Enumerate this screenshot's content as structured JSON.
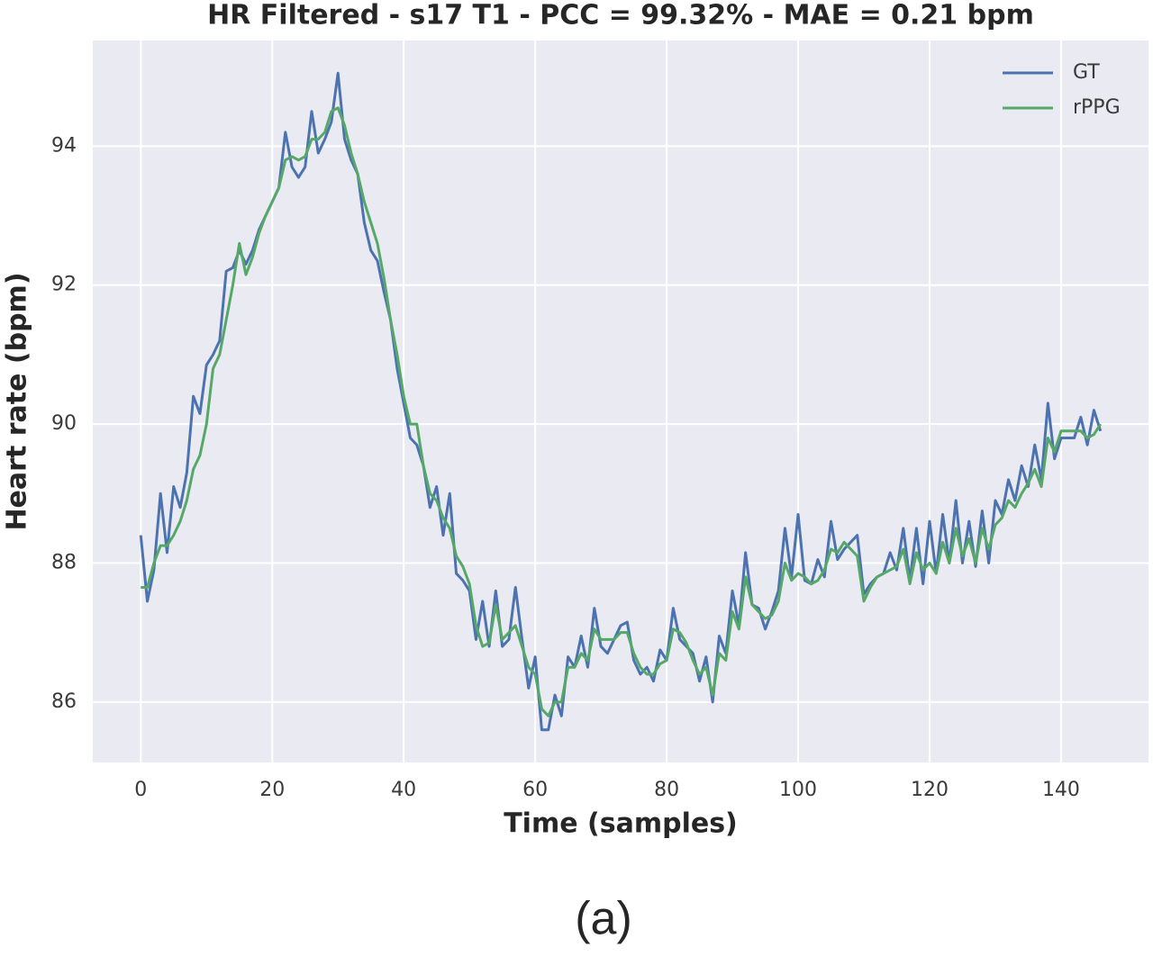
{
  "chart_data": {
    "type": "line",
    "title": "HR Filtered - s17 T1 - PCC = 99.32% - MAE = 0.21 bpm",
    "x_label": "Time (samples)",
    "y_label": "Heart rate (bpm)",
    "caption": "(a)",
    "xlim": [
      -7.3,
      153.3
    ],
    "ylim": [
      85.13,
      95.52
    ],
    "xticks": [
      0,
      20,
      40,
      60,
      80,
      100,
      120,
      140
    ],
    "yticks": [
      86,
      88,
      90,
      92,
      94
    ],
    "grid": true,
    "legend": "upper-right",
    "background": "#eaeaf2",
    "x": [
      0,
      1,
      2,
      3,
      4,
      5,
      6,
      7,
      8,
      9,
      10,
      11,
      12,
      13,
      14,
      15,
      16,
      17,
      18,
      19,
      20,
      21,
      22,
      23,
      24,
      25,
      26,
      27,
      28,
      29,
      30,
      31,
      32,
      33,
      34,
      35,
      36,
      37,
      38,
      39,
      40,
      41,
      42,
      43,
      44,
      45,
      46,
      47,
      48,
      49,
      50,
      51,
      52,
      53,
      54,
      55,
      56,
      57,
      58,
      59,
      60,
      61,
      62,
      63,
      64,
      65,
      66,
      67,
      68,
      69,
      70,
      71,
      72,
      73,
      74,
      75,
      76,
      77,
      78,
      79,
      80,
      81,
      82,
      83,
      84,
      85,
      86,
      87,
      88,
      89,
      90,
      91,
      92,
      93,
      94,
      95,
      96,
      97,
      98,
      99,
      100,
      101,
      102,
      103,
      104,
      105,
      106,
      107,
      108,
      109,
      110,
      111,
      112,
      113,
      114,
      115,
      116,
      117,
      118,
      119,
      120,
      121,
      122,
      123,
      124,
      125,
      126,
      127,
      128,
      129,
      130,
      131,
      132,
      133,
      134,
      135,
      136,
      137,
      138,
      139,
      140,
      141,
      142,
      143,
      144,
      145,
      146
    ],
    "series": [
      {
        "name": "GT",
        "color": "#4c72b0",
        "values": [
          88.4,
          87.45,
          87.9,
          89.0,
          88.15,
          89.1,
          88.8,
          89.3,
          90.4,
          90.15,
          90.85,
          91.0,
          91.2,
          92.2,
          92.25,
          92.5,
          92.3,
          92.5,
          92.8,
          93.0,
          93.2,
          93.4,
          94.2,
          93.7,
          93.55,
          93.7,
          94.5,
          93.9,
          94.1,
          94.35,
          95.05,
          94.1,
          93.8,
          93.6,
          92.9,
          92.5,
          92.35,
          91.9,
          91.5,
          90.8,
          90.3,
          89.8,
          89.7,
          89.4,
          88.8,
          89.1,
          88.4,
          89.0,
          87.85,
          87.75,
          87.6,
          86.9,
          87.45,
          86.8,
          87.6,
          86.8,
          86.9,
          87.65,
          86.9,
          86.2,
          86.65,
          85.6,
          85.6,
          86.1,
          85.8,
          86.65,
          86.5,
          86.95,
          86.5,
          87.35,
          86.8,
          86.7,
          86.9,
          87.1,
          87.15,
          86.6,
          86.4,
          86.5,
          86.3,
          86.75,
          86.6,
          87.35,
          86.9,
          86.8,
          86.7,
          86.3,
          86.65,
          86.0,
          86.95,
          86.7,
          87.6,
          87.1,
          88.15,
          87.4,
          87.35,
          87.05,
          87.3,
          87.6,
          88.5,
          87.8,
          88.7,
          87.75,
          87.7,
          88.05,
          87.8,
          88.6,
          88.05,
          88.2,
          88.3,
          88.4,
          87.55,
          87.7,
          87.8,
          87.85,
          88.15,
          87.9,
          88.5,
          87.75,
          88.5,
          87.7,
          88.6,
          87.85,
          88.7,
          88.0,
          88.9,
          88.0,
          88.6,
          87.95,
          88.75,
          88.0,
          88.9,
          88.7,
          89.2,
          88.9,
          89.4,
          89.1,
          89.7,
          89.2,
          90.3,
          89.5,
          89.8,
          89.8,
          89.8,
          90.1,
          89.7,
          90.2,
          89.9
        ]
      },
      {
        "name": "rPPG",
        "color": "#55a868",
        "values": [
          87.65,
          87.65,
          88.0,
          88.25,
          88.25,
          88.4,
          88.6,
          88.9,
          89.35,
          89.55,
          90.0,
          90.8,
          91.0,
          91.5,
          92.0,
          92.6,
          92.15,
          92.4,
          92.75,
          93.0,
          93.2,
          93.4,
          93.8,
          93.85,
          93.8,
          93.85,
          94.1,
          94.1,
          94.2,
          94.5,
          94.55,
          94.3,
          93.9,
          93.6,
          93.2,
          92.9,
          92.6,
          92.1,
          91.5,
          91.0,
          90.4,
          90.0,
          90.0,
          89.4,
          89.0,
          88.9,
          88.65,
          88.5,
          88.1,
          87.95,
          87.7,
          87.1,
          86.8,
          86.85,
          87.4,
          86.9,
          87.0,
          87.1,
          86.8,
          86.5,
          86.4,
          85.9,
          85.8,
          86.0,
          86.0,
          86.5,
          86.5,
          86.7,
          86.6,
          87.05,
          86.9,
          86.9,
          86.9,
          87.0,
          87.0,
          86.7,
          86.5,
          86.4,
          86.4,
          86.55,
          86.6,
          87.05,
          87.0,
          86.85,
          86.6,
          86.4,
          86.5,
          86.1,
          86.7,
          86.6,
          87.3,
          87.05,
          87.8,
          87.4,
          87.3,
          87.2,
          87.25,
          87.45,
          88.0,
          87.75,
          87.85,
          87.8,
          87.7,
          87.75,
          87.9,
          88.2,
          88.15,
          88.3,
          88.2,
          88.1,
          87.45,
          87.65,
          87.8,
          87.85,
          87.9,
          87.95,
          88.2,
          87.7,
          88.15,
          87.9,
          88.0,
          87.85,
          88.3,
          88.0,
          88.5,
          88.1,
          88.35,
          88.0,
          88.5,
          88.2,
          88.55,
          88.65,
          88.9,
          88.8,
          89.0,
          89.15,
          89.35,
          89.1,
          89.8,
          89.6,
          89.9,
          89.9,
          89.9,
          89.9,
          89.8,
          89.85,
          90.0
        ]
      }
    ]
  }
}
